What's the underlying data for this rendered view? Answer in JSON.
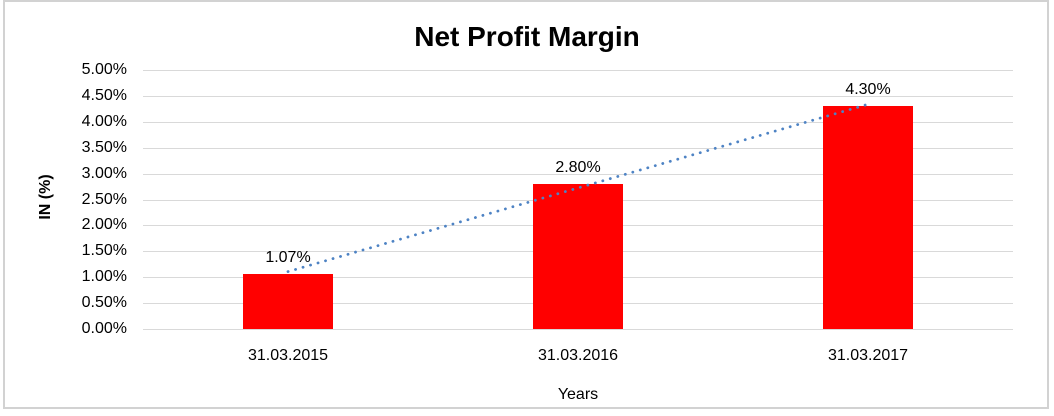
{
  "frame": {
    "background": "#ffffff",
    "border_color": "#d2d2d2"
  },
  "chart_data": {
    "type": "bar",
    "title": "Net Profit Margin",
    "categories": [
      "31.03.2015",
      "31.03.2016",
      "31.03.2017"
    ],
    "values": [
      1.07,
      2.8,
      4.3
    ],
    "data_labels": [
      "1.07%",
      "2.80%",
      "4.30%"
    ],
    "xlabel": "Years",
    "ylabel": "IN (%)",
    "ylim": [
      0,
      5
    ],
    "ytick_step": 0.5,
    "yticks": [
      "5.00%",
      "4.50%",
      "4.00%",
      "3.50%",
      "3.00%",
      "2.50%",
      "2.00%",
      "1.50%",
      "1.00%",
      "0.50%",
      "0.00%"
    ],
    "grid": true,
    "legend": "none",
    "trendline": {
      "type": "linear",
      "style": "dotted"
    },
    "colors": {
      "bar": "#ff0000",
      "gridline": "#d9d9d9",
      "trendline": "#4e83c4",
      "text": "#000000"
    }
  }
}
